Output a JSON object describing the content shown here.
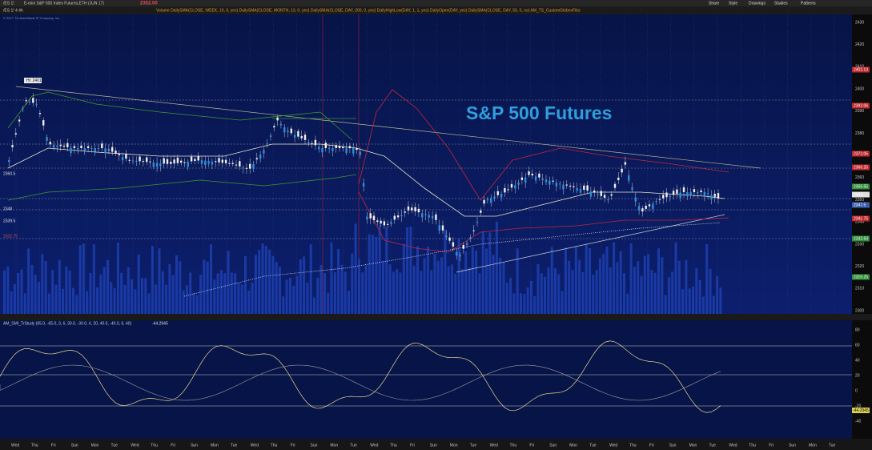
{
  "toolbar": {
    "symbol": "/ES 1!",
    "description": "E-mini S&P 500 Index Futures,ETH (JUN 17)",
    "last": "2352.00",
    "studies": "Volume   DailySMA(CLOSE, WEEK, 10, 0, yes)   DailySMA(CLOSE, MONTH, 13, 0, yes)   DailySMA(CLOSE, DAY, 200, 0, yes)   DailyHighLow(DAY, 1, 1, yes)   DailyOpen(DAY, yes)   DailySMA(CLOSE, DAY, 50, 0, no)   AM_TS_CustomGlobexFibs",
    "buttons": [
      "Share",
      "Style",
      "Drawings",
      "Studies",
      "Patterns"
    ]
  },
  "chart": {
    "timeframe": "/ES 1! 4 4h",
    "copyright": "© 2017 TD Ameritrade IP Company, Inc.",
    "title": "S&P 500 Futures",
    "high_label": "Hi: 2401",
    "price_axis": [
      "2430",
      "2420",
      "2410",
      "2400",
      "2390",
      "2380",
      "2370",
      "2360",
      "2350",
      "2340",
      "2330",
      "2320",
      "2310",
      "2300"
    ],
    "price_markers": [
      {
        "label": "2402.13",
        "color": "#c0282d"
      },
      {
        "label": "2392.06",
        "color": "#c0282d"
      },
      {
        "label": "2372.05",
        "color": "#c0282d"
      },
      {
        "label": "2366.25",
        "color": "#c0282d"
      },
      {
        "label": "2355.55",
        "color": "#2f8f3a"
      },
      {
        "label": "2352",
        "color": "#e0e0e0"
      },
      {
        "label": "2347.5",
        "color": "#3a5fb0"
      },
      {
        "label": "2341.75",
        "color": "#c0282d"
      },
      {
        "label": "2332.63",
        "color": "#2f8f3a"
      },
      {
        "label": "2315.25",
        "color": "#2f8f3a"
      }
    ],
    "left_labels": [
      "2360.5",
      "2348",
      "2339.5",
      "2332.75"
    ]
  },
  "study": {
    "label": "AM_SMI_TrStudy (65.0, -65.0, 3, 6, 30.0, -30.0, 4, 20, 40.0, -40.0, 6, 40)",
    "value": "-44.2945",
    "axis": [
      "80",
      "60",
      "40",
      "20",
      "0",
      "-20",
      "-40"
    ]
  },
  "time_axis": [
    "Wed",
    "Thu",
    "Fri",
    "Sun",
    "Mon",
    "Tue",
    "Wed",
    "Thu",
    "Fri",
    "Sun",
    "Mon",
    "Tue",
    "Wed",
    "Thu",
    "Fri",
    "Sun",
    "Mon",
    "Tue",
    "Wed",
    "Thu",
    "Fri",
    "Sun",
    "Mon",
    "Tue",
    "Wed",
    "Thu",
    "Fri",
    "Sun",
    "Mon",
    "Tue",
    "Wed",
    "Thu",
    "Fri",
    "Sun",
    "Mon",
    "Tue",
    "Wed",
    "Thu",
    "Fri",
    "Sun",
    "Mon",
    "Tue"
  ]
}
